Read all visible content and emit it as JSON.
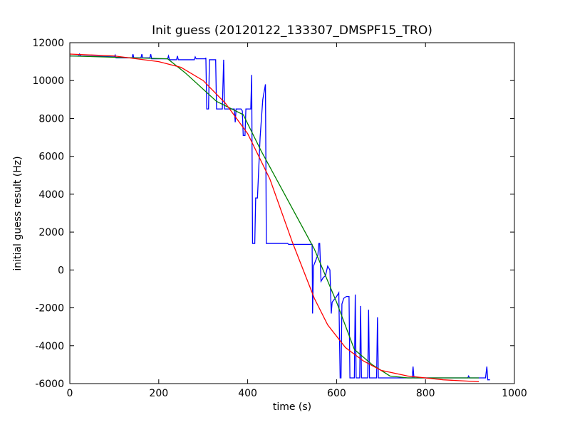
{
  "chart_data": {
    "type": "line",
    "title": "Init guess (20120122_133307_DMSPF15_TRO)",
    "x_label": "time (s)",
    "y_label": "initial guess result (Hz)",
    "xlim": [
      0,
      1000
    ],
    "xticks": [
      0,
      200,
      400,
      600,
      800,
      1000
    ],
    "ylim": [
      -6000,
      12000
    ],
    "yticks": [
      -6000,
      -4000,
      -2000,
      0,
      2000,
      4000,
      6000,
      8000,
      10000,
      12000
    ],
    "grid": false,
    "series": [
      {
        "color": "#0000ff",
        "x": [
          0,
          20,
          22,
          25,
          100,
          102,
          104,
          140,
          142,
          144,
          160,
          162,
          164,
          180,
          182,
          184,
          220,
          222,
          224,
          240,
          242,
          244,
          280,
          282,
          284,
          305,
          306,
          308,
          312,
          314,
          328,
          330,
          343,
          346,
          348,
          370,
          372,
          374,
          385,
          388,
          390,
          394,
          396,
          407,
          409,
          411,
          416,
          418,
          422,
          428,
          434,
          437,
          440,
          442,
          490,
          492,
          545,
          546,
          548,
          558,
          560,
          562,
          565,
          570,
          575,
          580,
          585,
          588,
          590,
          600,
          605,
          608,
          610,
          612,
          616,
          622,
          628,
          630,
          640,
          642,
          644,
          652,
          654,
          656,
          670,
          672,
          674,
          690,
          692,
          694,
          770,
          772,
          774,
          895,
          897,
          899,
          935,
          938,
          940,
          945
        ],
        "values": [
          11300,
          11300,
          11400,
          11300,
          11250,
          11350,
          11200,
          11200,
          11400,
          11200,
          11200,
          11400,
          11200,
          11200,
          11400,
          11150,
          11150,
          11300,
          11100,
          11100,
          11300,
          11100,
          11100,
          11250,
          11150,
          11150,
          11200,
          8500,
          8500,
          11100,
          11100,
          8500,
          8500,
          11100,
          8500,
          8500,
          7800,
          8500,
          8500,
          8400,
          7100,
          7100,
          8500,
          8500,
          10300,
          1400,
          1400,
          3800,
          3800,
          7000,
          9000,
          9400,
          9800,
          1400,
          1400,
          1350,
          1350,
          -2300,
          200,
          800,
          1400,
          1400,
          -600,
          -400,
          -300,
          200,
          0,
          -2300,
          -1700,
          -1400,
          -1200,
          -5700,
          -5700,
          -1800,
          -1500,
          -1400,
          -1400,
          -5700,
          -5700,
          -1300,
          -5700,
          -5700,
          -1900,
          -5700,
          -5700,
          -2100,
          -5700,
          -5700,
          -2500,
          -5700,
          -5700,
          -5100,
          -5700,
          -5700,
          -5600,
          -5700,
          -5700,
          -5100,
          -5800,
          -5800
        ]
      },
      {
        "color": "#008000",
        "x": [
          0,
          220,
          260,
          330,
          390,
          430,
          550,
          600,
          640,
          680,
          720,
          760,
          920
        ],
        "values": [
          11300,
          11150,
          10400,
          8900,
          8200,
          6300,
          1100,
          -1700,
          -4200,
          -5000,
          -5600,
          -5700,
          -5700
        ]
      },
      {
        "color": "#ff0000",
        "x": [
          0,
          100,
          200,
          250,
          300,
          350,
          400,
          450,
          500,
          550,
          580,
          620,
          660,
          700,
          760,
          840,
          920
        ],
        "values": [
          11400,
          11300,
          11000,
          10700,
          10000,
          8800,
          7200,
          4800,
          1500,
          -1500,
          -2900,
          -4100,
          -4800,
          -5300,
          -5600,
          -5800,
          -5900
        ]
      }
    ]
  }
}
